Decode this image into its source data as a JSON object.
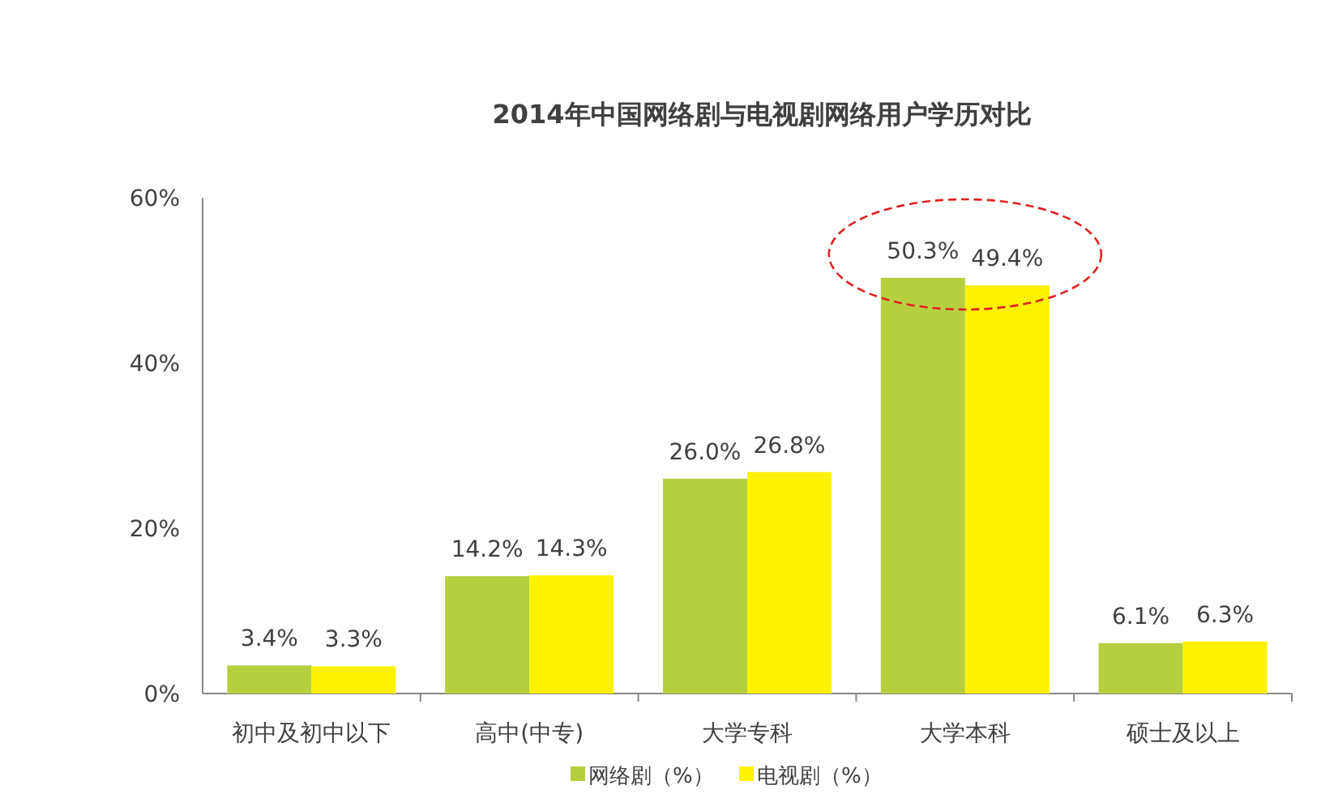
{
  "chart_data": {
    "type": "bar",
    "title": "2014年中国网络剧与电视剧网络用户学历对比",
    "categories": [
      "初中及初中以下",
      "高中(中专)",
      "大学专科",
      "大学本科",
      "硕士及以上"
    ],
    "series": [
      {
        "name": "网络剧（%）",
        "color": "#b5cf3f",
        "values": [
          3.4,
          14.2,
          26.0,
          50.3,
          6.1
        ],
        "value_labels": [
          "3.4%",
          "14.2%",
          "26.0%",
          "50.3%",
          "6.1%"
        ]
      },
      {
        "name": "电视剧（%）",
        "color": "#fff200",
        "values": [
          3.3,
          14.3,
          26.8,
          49.4,
          6.3
        ],
        "value_labels": [
          "3.3%",
          "14.3%",
          "26.8%",
          "49.4%",
          "6.3%"
        ]
      }
    ],
    "ylim": [
      0,
      60
    ],
    "yticks": [
      {
        "value": 0,
        "label": "0%"
      },
      {
        "value": 20,
        "label": "20%"
      },
      {
        "value": 40,
        "label": "40%"
      },
      {
        "value": 60,
        "label": "60%"
      }
    ],
    "grid": false,
    "legend": "bottom"
  }
}
